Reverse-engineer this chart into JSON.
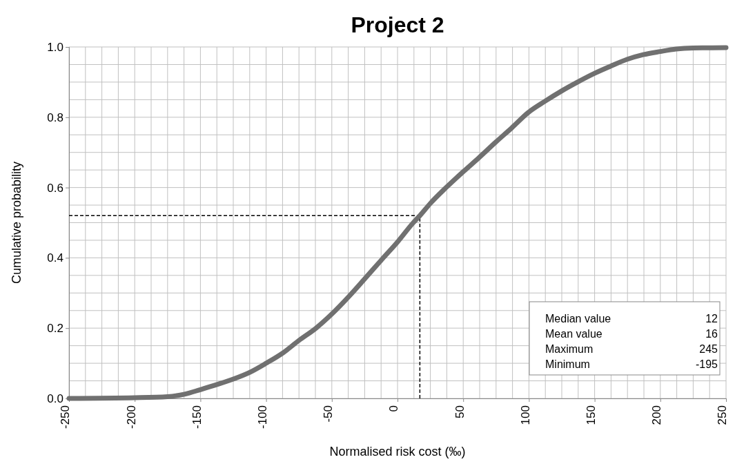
{
  "chart_data": {
    "type": "line",
    "title": "Project 2",
    "xlabel": "Normalised risk cost (‰)",
    "ylabel": "Cumulative probability",
    "xlim": [
      -250,
      250
    ],
    "xticks": [
      -250,
      {
        "value": -237.5,
        "label": null
      },
      {
        "value": -225,
        "label": null
      },
      {
        "value": -212.5,
        "label": null
      },
      -200,
      {
        "value": -187.5,
        "label": null
      },
      {
        "value": -175,
        "label": null
      },
      {
        "value": -162.5,
        "label": null
      },
      -150,
      {
        "value": -137.5,
        "label": null
      },
      {
        "value": -125,
        "label": null
      },
      {
        "value": -112.5,
        "label": null
      },
      -100,
      {
        "value": -87.5,
        "label": null
      },
      {
        "value": -75,
        "label": null
      },
      {
        "value": -62.5,
        "label": null
      },
      -50,
      {
        "value": -37.5,
        "label": null
      },
      {
        "value": -25,
        "label": null
      },
      {
        "value": -12.5,
        "label": null
      },
      0,
      {
        "value": 12.5,
        "label": null
      },
      {
        "value": 25,
        "label": null
      },
      {
        "value": 37.5,
        "label": null
      },
      50,
      {
        "value": 62.5,
        "label": null
      },
      {
        "value": 75,
        "label": null
      },
      {
        "value": 87.5,
        "label": null
      },
      100,
      {
        "value": 112.5,
        "label": null
      },
      {
        "value": 125,
        "label": null
      },
      {
        "value": 137.5,
        "label": null
      },
      150,
      {
        "value": 162.5,
        "label": null
      },
      {
        "value": 175,
        "label": null
      },
      {
        "value": 187.5,
        "label": null
      },
      200,
      {
        "value": 212.5,
        "label": null
      },
      {
        "value": 225,
        "label": null
      },
      {
        "value": 237.5,
        "label": null
      },
      250
    ],
    "ylim": [
      0,
      1
    ],
    "yticks": [
      {
        "value": 0,
        "label": "0.0"
      },
      {
        "value": 0.05,
        "label": null
      },
      {
        "value": 0.1,
        "label": null
      },
      {
        "value": 0.15,
        "label": null
      },
      0.2,
      {
        "value": 0.25,
        "label": null
      },
      {
        "value": 0.3,
        "label": null
      },
      {
        "value": 0.35,
        "label": null
      },
      0.4,
      {
        "value": 0.45,
        "label": null
      },
      {
        "value": 0.5,
        "label": null
      },
      {
        "value": 0.55,
        "label": null
      },
      0.6,
      {
        "value": 0.65,
        "label": null
      },
      {
        "value": 0.7,
        "label": null
      },
      {
        "value": 0.75,
        "label": null
      },
      0.8,
      {
        "value": 0.85,
        "label": null
      },
      {
        "value": 0.9,
        "label": null
      },
      {
        "value": 0.95,
        "label": null
      },
      {
        "value": 1,
        "label": "1.0"
      }
    ],
    "grid": true,
    "series": [
      {
        "color": "#707070",
        "x": [
          -250,
          -200,
          -175,
          -162,
          -150,
          -137,
          -125,
          -112,
          -100,
          -87,
          -75,
          -62,
          -50,
          -37,
          -25,
          -12,
          0,
          12,
          17,
          25,
          37,
          50,
          62,
          75,
          87,
          100,
          112,
          125,
          137,
          150,
          162,
          175,
          187,
          200,
          212,
          225,
          250
        ],
        "values": [
          0,
          0.002,
          0.005,
          0.012,
          0.025,
          0.04,
          0.055,
          0.075,
          0.1,
          0.13,
          0.165,
          0.2,
          0.24,
          0.29,
          0.34,
          0.395,
          0.445,
          0.5,
          0.52,
          0.555,
          0.6,
          0.645,
          0.685,
          0.73,
          0.77,
          0.815,
          0.845,
          0.875,
          0.9,
          0.925,
          0.945,
          0.965,
          0.978,
          0.987,
          0.994,
          0.997,
          0.998
        ]
      }
    ],
    "ref_lines": [
      {
        "axis": "x",
        "value": 17,
        "line_style": "dashed",
        "color": "#000000"
      },
      {
        "axis": "y",
        "value": 0.52,
        "line_style": "dashed",
        "color": "#000000"
      }
    ],
    "annotations": [
      "Median value",
      "12",
      "Mean value",
      "16",
      "Maximum",
      "245",
      "Minimum",
      "-195"
    ]
  }
}
